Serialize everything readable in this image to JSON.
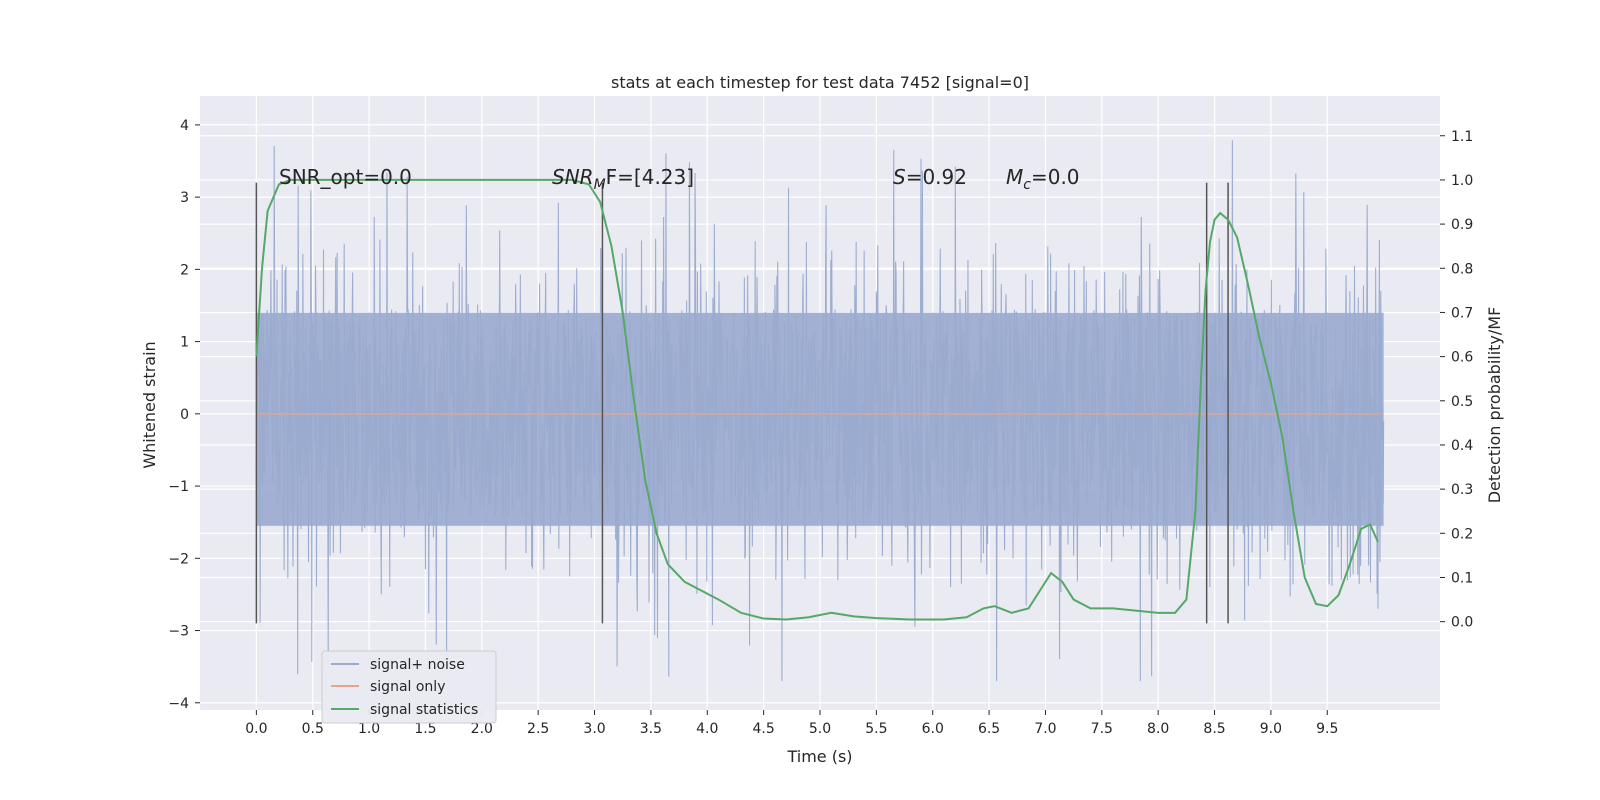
{
  "chart_data": {
    "type": "line",
    "title": "stats at each timestep for test data 7452 [signal=0]",
    "xlabel": "Time (s)",
    "ylabel": "Whitened strain",
    "ylabel_right": "Detection probability/MF",
    "xlim": [
      -0.5,
      10.5
    ],
    "ylim": [
      -4.1,
      4.4
    ],
    "ylim_right": [
      -0.2,
      1.19
    ],
    "x_ticks": [
      0.0,
      0.5,
      1.0,
      1.5,
      2.0,
      2.5,
      3.0,
      3.5,
      4.0,
      4.5,
      5.0,
      5.5,
      6.0,
      6.5,
      7.0,
      7.5,
      8.0,
      8.5,
      9.0,
      9.5
    ],
    "x_tick_labels": [
      "0.0",
      "0.5",
      "1.0",
      "1.5",
      "2.0",
      "2.5",
      "3.0",
      "3.5",
      "4.0",
      "4.5",
      "5.0",
      "5.5",
      "6.0",
      "6.5",
      "7.0",
      "7.5",
      "8.0",
      "8.5",
      "9.0",
      "9.5"
    ],
    "y_ticks": [
      -4,
      -3,
      -2,
      -1,
      0,
      1,
      2,
      3,
      4
    ],
    "y_tick_labels": [
      "−4",
      "−3",
      "−2",
      "−1",
      "0",
      "1",
      "2",
      "3",
      "4"
    ],
    "y_right_ticks": [
      0.0,
      0.1,
      0.2,
      0.3,
      0.4,
      0.5,
      0.6,
      0.7,
      0.8,
      0.9,
      1.0,
      1.1
    ],
    "y_right_tick_labels": [
      "0.0",
      "0.1",
      "0.2",
      "0.3",
      "0.4",
      "0.5",
      "0.6",
      "0.7",
      "0.8",
      "0.9",
      "1.0",
      "1.1"
    ],
    "grid": true,
    "legend": "lower-left",
    "annotations": {
      "snr_opt": "SNR_opt=0.0",
      "snr_mf_base": "SNR",
      "snr_mf_sub": "M",
      "snr_mf_rest": "F=[4.23]",
      "s_var": "S",
      "s_val": "=0.92",
      "mc_var": "M",
      "mc_sub": "c",
      "mc_val": "=0.0"
    },
    "vertical_markers_x": [
      0.0,
      3.07,
      8.43,
      8.62
    ],
    "marker_y_range": [
      -2.9,
      3.2
    ],
    "series": [
      {
        "name": "signal+ noise",
        "color": "#9aabcf",
        "x_range": [
          0.0,
          10.0
        ],
        "envelope": "noise",
        "typical_max": 1.4,
        "typical_min": -1.55,
        "peak_max": 4.05,
        "peak_min": -3.7
      },
      {
        "name": "signal only",
        "color": "#e6a58a",
        "x": [
          0.0,
          10.0
        ],
        "y": [
          0.0,
          0.0
        ]
      },
      {
        "name": "signal statistics",
        "color": "#55a868",
        "axis": "right",
        "x": [
          0.0,
          0.05,
          0.1,
          0.2,
          0.3,
          0.5,
          1.0,
          1.5,
          2.0,
          2.5,
          2.8,
          2.95,
          3.05,
          3.15,
          3.25,
          3.35,
          3.45,
          3.55,
          3.65,
          3.8,
          3.95,
          4.1,
          4.3,
          4.5,
          4.7,
          4.9,
          5.1,
          5.3,
          5.5,
          5.8,
          6.1,
          6.3,
          6.45,
          6.55,
          6.7,
          6.85,
          6.95,
          7.05,
          7.15,
          7.25,
          7.4,
          7.6,
          7.8,
          8.0,
          8.15,
          8.25,
          8.33,
          8.38,
          8.42,
          8.46,
          8.5,
          8.55,
          8.62,
          8.7,
          8.8,
          8.9,
          9.0,
          9.1,
          9.2,
          9.3,
          9.4,
          9.5,
          9.6,
          9.7,
          9.8,
          9.88,
          9.95
        ],
        "y": [
          0.6,
          0.8,
          0.93,
          0.99,
          1.0,
          1.0,
          1.0,
          1.0,
          1.0,
          1.0,
          1.0,
          0.99,
          0.95,
          0.85,
          0.7,
          0.5,
          0.32,
          0.2,
          0.13,
          0.09,
          0.07,
          0.05,
          0.02,
          0.007,
          0.005,
          0.01,
          0.02,
          0.012,
          0.008,
          0.005,
          0.005,
          0.01,
          0.03,
          0.035,
          0.02,
          0.03,
          0.07,
          0.11,
          0.09,
          0.05,
          0.03,
          0.03,
          0.025,
          0.02,
          0.02,
          0.05,
          0.25,
          0.55,
          0.75,
          0.86,
          0.91,
          0.925,
          0.91,
          0.87,
          0.76,
          0.64,
          0.54,
          0.42,
          0.25,
          0.1,
          0.04,
          0.035,
          0.06,
          0.13,
          0.21,
          0.22,
          0.18
        ]
      }
    ]
  }
}
